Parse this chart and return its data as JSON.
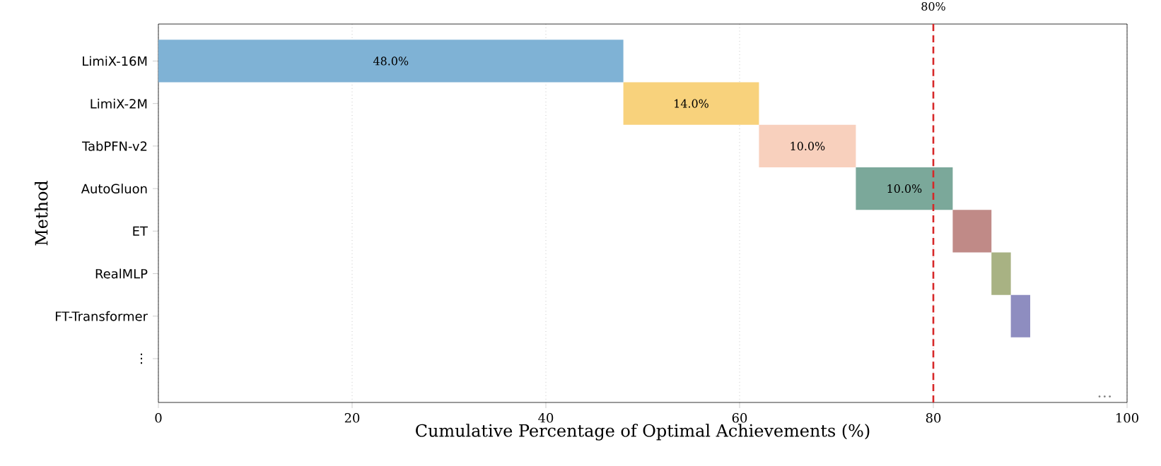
{
  "chart_data": {
    "type": "bar",
    "orientation": "horizontal",
    "xlabel": "Cumulative Percentage of Optimal Achievements (%)",
    "ylabel": "Method",
    "categories": [
      "LimiX-16M",
      "LimiX-2M",
      "TabPFN-v2",
      "AutoGluon",
      "ET",
      "RealMLP",
      "FT-Transformer",
      "⋮"
    ],
    "values": [
      48,
      14,
      10,
      10,
      4,
      2,
      2,
      null
    ],
    "base": [
      0,
      48,
      62,
      72,
      82,
      86,
      88,
      null
    ],
    "colors": [
      "#7fb2d5",
      "#f8d27c",
      "#f8d0bd",
      "#7ba89a",
      "#c08a87",
      "#a8b283",
      "#8e8dc0",
      null
    ],
    "value_labels": [
      "48.0%",
      "14.0%",
      "10.0%",
      "10.0%",
      null,
      null,
      null,
      null
    ],
    "xlim": [
      0,
      100
    ],
    "xticks": [
      0,
      20,
      40,
      60,
      80,
      100
    ],
    "grid": "x",
    "ref_lines": [
      {
        "axis": "x",
        "value": 80,
        "label": "80%",
        "color": "#d62728",
        "line_style": "dashed"
      }
    ],
    "annotations": [
      "…"
    ]
  }
}
